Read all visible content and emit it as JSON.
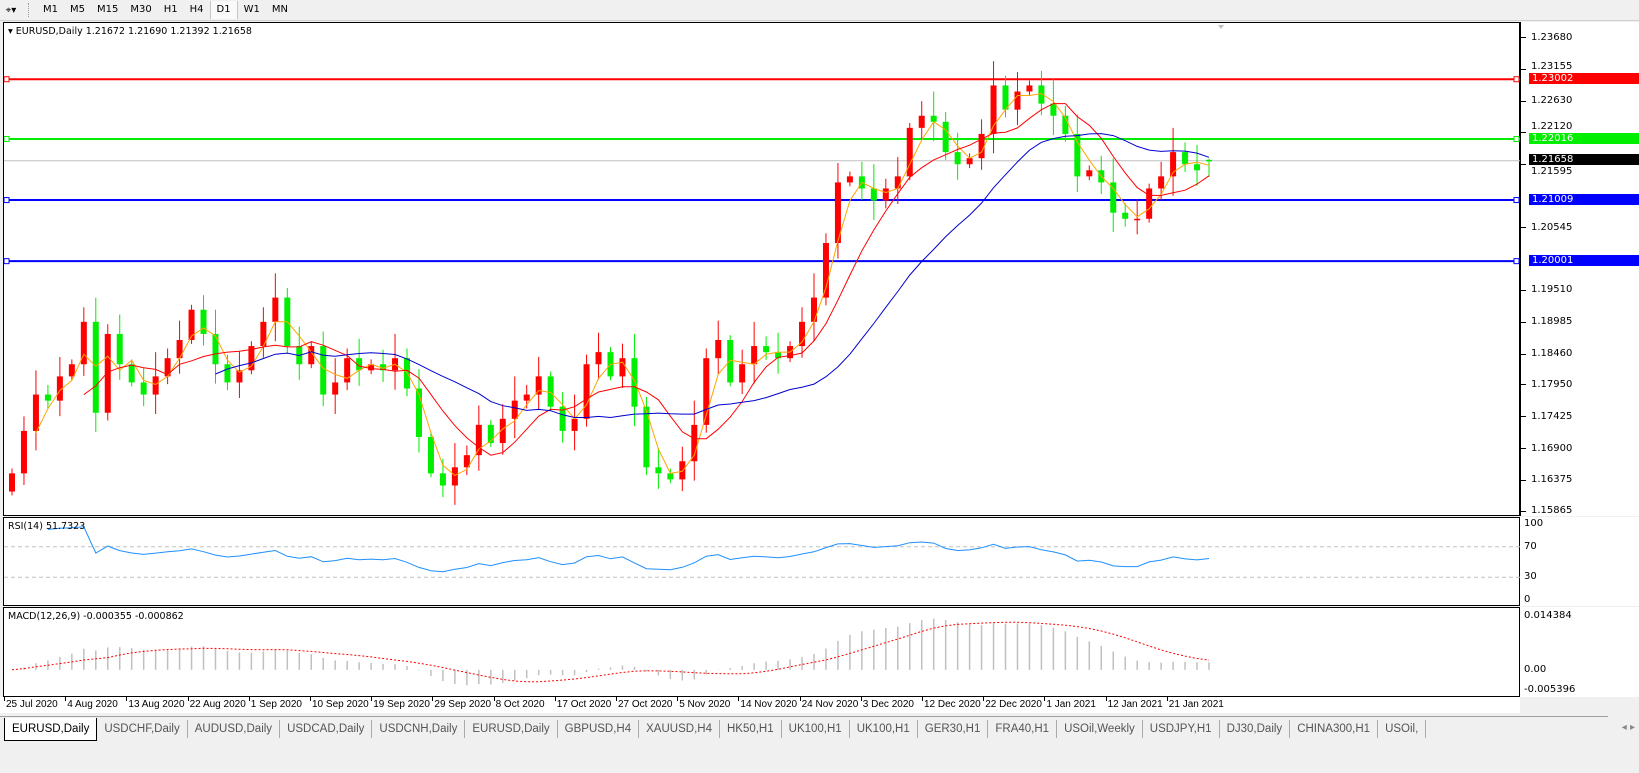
{
  "toolbar": {
    "tool_icon": "crosshair-tool-icon",
    "timeframes": [
      "M1",
      "M5",
      "M15",
      "M30",
      "H1",
      "H4",
      "D1",
      "W1",
      "MN"
    ],
    "active_timeframe": "D1"
  },
  "main": {
    "title": "EURUSD,Daily  1.21672 1.21690 1.21392 1.21658",
    "colors": {
      "up": "#ff0000",
      "down": "#00ee00",
      "ma_fast": "#ffa500",
      "ma_mid": "#ff0000",
      "ma_slow": "#0000cd"
    }
  },
  "price_axis": {
    "ticks": [
      "1.23680",
      "1.23155",
      "1.22630",
      "1.22120",
      "1.21595",
      "1.20545",
      "1.19510",
      "1.18985",
      "1.18460",
      "1.17950",
      "1.17425",
      "1.16900",
      "1.16375",
      "1.15865"
    ],
    "current": {
      "label": "1.21658",
      "color": "#000000"
    },
    "levels": [
      {
        "label": "1.23002",
        "color": "#ff0000"
      },
      {
        "label": "1.22016",
        "color": "#00ee00"
      },
      {
        "label": "1.21009",
        "color": "#0000ff"
      },
      {
        "label": "1.20001",
        "color": "#0000ff"
      }
    ]
  },
  "rsi": {
    "title": "RSI(14) 51.7323",
    "ticks": [
      "100",
      "70",
      "30",
      "0"
    ],
    "color": "#1e90ff"
  },
  "macd": {
    "title": "MACD(12,26,9) -0.000355 -0.000862",
    "ticks": [
      "0.014384",
      "0.00",
      "-0.005396"
    ],
    "signal_color": "#ff0000",
    "hist_color": "#c0c0c0"
  },
  "date_axis": [
    "25 Jul 2020",
    "4 Aug 2020",
    "13 Aug 2020",
    "22 Aug 2020",
    "1 Sep 2020",
    "10 Sep 2020",
    "19 Sep 2020",
    "29 Sep 2020",
    "8 Oct 2020",
    "17 Oct 2020",
    "27 Oct 2020",
    "5 Nov 2020",
    "14 Nov 2020",
    "24 Nov 2020",
    "3 Dec 2020",
    "12 Dec 2020",
    "22 Dec 2020",
    "1 Jan 2021",
    "12 Jan 2021",
    "21 Jan 2021"
  ],
  "tabs": [
    "EURUSD,Daily",
    "USDCHF,Daily",
    "AUDUSD,Daily",
    "USDCAD,Daily",
    "USDCNH,Daily",
    "EURUSD,Daily",
    "GBPUSD,H4",
    "XAUUSD,H4",
    "HK50,H1",
    "UK100,H1",
    "UK100,H1",
    "GER30,H1",
    "FRA40,H1",
    "USOil,Weekly",
    "USDJPY,H1",
    "DJ30,Daily",
    "CHINA300,H1",
    "USOil,"
  ],
  "active_tab": 0,
  "chart_data": {
    "type": "candlestick",
    "symbol": "EURUSD",
    "timeframe": "Daily",
    "ylim": [
      1.1578,
      1.2393
    ],
    "x_range": [
      "25 Jul 2020",
      "21 Jan 2021"
    ],
    "horizontal_levels": [
      1.23002,
      1.22016,
      1.21009,
      1.20001
    ],
    "last_bar": {
      "open": 1.21672,
      "high": 1.2169,
      "low": 1.21392,
      "close": 1.21658
    },
    "closes_approx": [
      1.165,
      1.172,
      1.178,
      1.177,
      1.181,
      1.183,
      1.19,
      1.175,
      1.188,
      1.183,
      1.18,
      1.178,
      1.181,
      1.184,
      1.187,
      1.192,
      1.188,
      1.183,
      1.18,
      1.182,
      1.186,
      1.19,
      1.194,
      1.186,
      1.183,
      1.186,
      1.178,
      1.18,
      1.184,
      1.182,
      1.183,
      1.182,
      1.184,
      1.179,
      1.171,
      1.165,
      1.163,
      1.166,
      1.168,
      1.173,
      1.17,
      1.174,
      1.177,
      1.178,
      1.181,
      1.176,
      1.172,
      1.174,
      1.183,
      1.185,
      1.181,
      1.184,
      1.176,
      1.166,
      1.165,
      1.164,
      1.167,
      1.173,
      1.184,
      1.187,
      1.18,
      1.183,
      1.186,
      1.185,
      1.184,
      1.186,
      1.19,
      1.194,
      1.203,
      1.213,
      1.214,
      1.212,
      1.21,
      1.212,
      1.214,
      1.222,
      1.224,
      1.223,
      1.218,
      1.216,
      1.217,
      1.221,
      1.229,
      1.225,
      1.228,
      1.229,
      1.226,
      1.224,
      1.221,
      1.214,
      1.215,
      1.213,
      1.208,
      1.207,
      1.207,
      1.212,
      1.214,
      1.218,
      1.216,
      1.215,
      1.21658
    ],
    "rsi_levels": [
      70,
      30
    ],
    "rsi_range": [
      0,
      100
    ],
    "macd_range": [
      -0.005396,
      0.014384
    ]
  }
}
